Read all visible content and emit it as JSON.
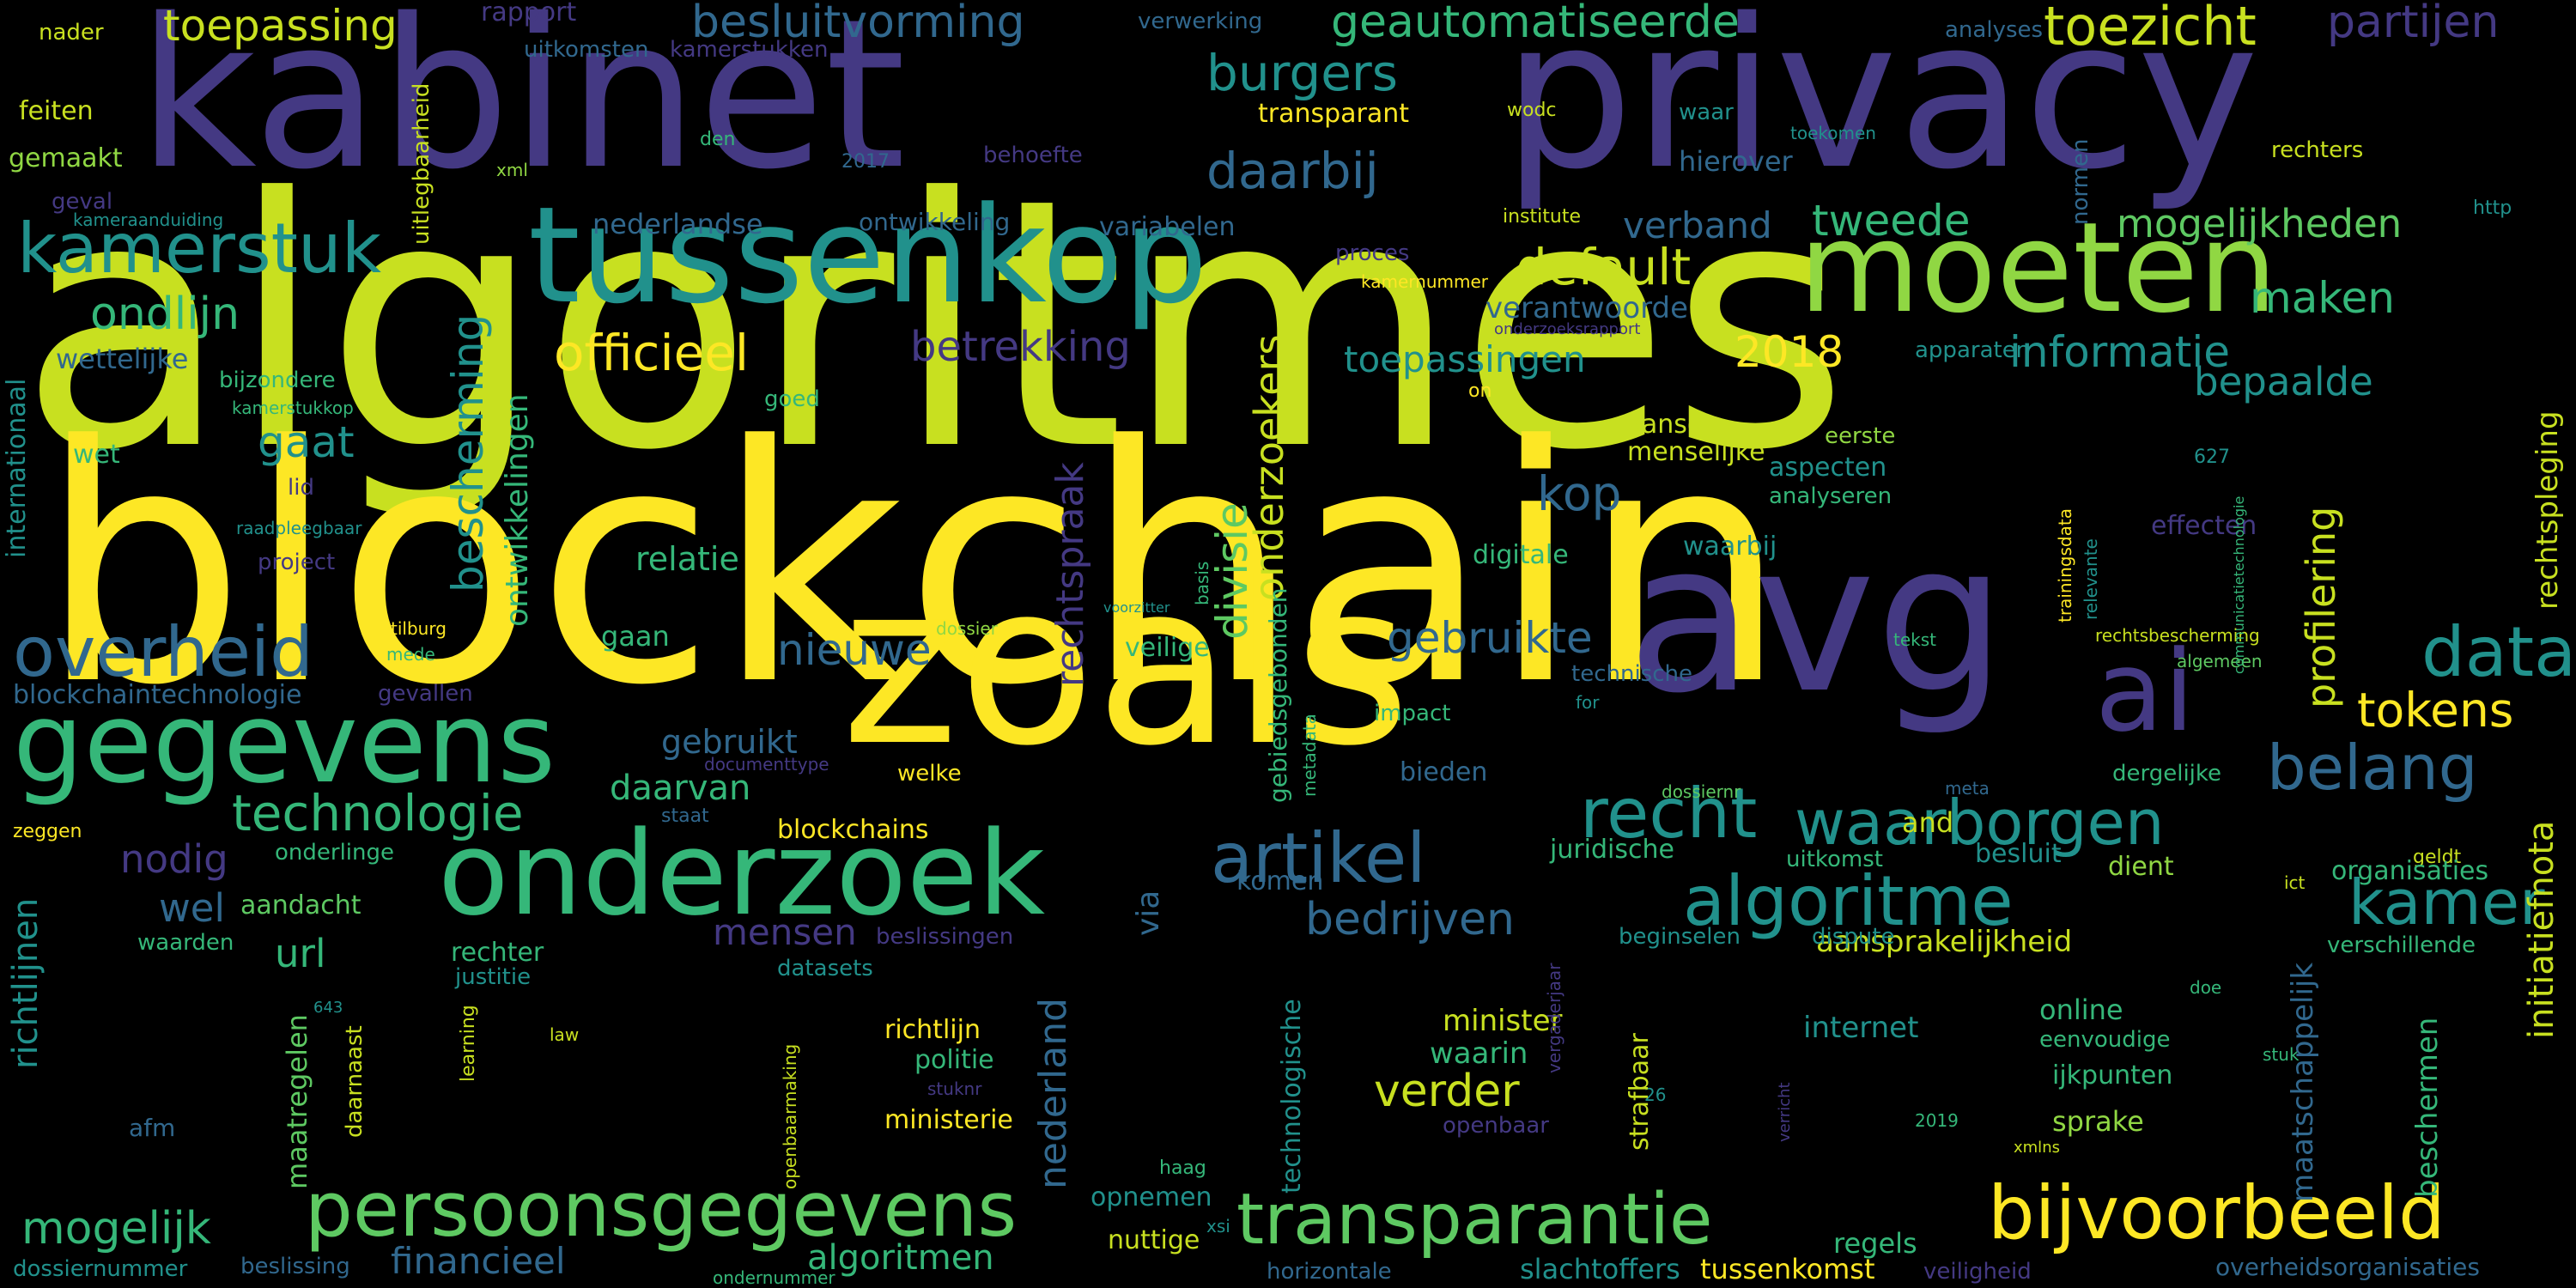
{
  "palette": {
    "background": "#000000",
    "yellow": "#fde725",
    "lime": "#c8e020",
    "green": "#90d743",
    "ltgreen": "#5ec962",
    "teal": "#21918c",
    "tealgreen": "#35b779",
    "blue": "#31688e",
    "indigo": "#443983",
    "purple": "#440154"
  },
  "words": [
    {
      "id": "algoritmes",
      "text": "algoritmes"
    },
    {
      "id": "blockchain",
      "text": "blockchain"
    },
    {
      "id": "kabinet",
      "text": "kabinet"
    },
    {
      "id": "privacy",
      "text": "privacy"
    },
    {
      "id": "zoals",
      "text": "zoals"
    },
    {
      "id": "avg",
      "text": "avg"
    },
    {
      "id": "tussenkop",
      "text": "tussenkop"
    },
    {
      "id": "moeten",
      "text": "moeten"
    },
    {
      "id": "onderzoek",
      "text": "onderzoek"
    },
    {
      "id": "gegevens",
      "text": "gegevens"
    },
    {
      "id": "ai",
      "text": "ai"
    },
    {
      "id": "persoonsgegevens",
      "text": "persoonsgegevens"
    },
    {
      "id": "transparantie",
      "text": "transparantie"
    },
    {
      "id": "bijvoorbeeld",
      "text": "bijvoorbeeld"
    },
    {
      "id": "kamerstuk",
      "text": "kamerstuk"
    },
    {
      "id": "overheid",
      "text": "overheid"
    },
    {
      "id": "algoritme",
      "text": "algoritme"
    },
    {
      "id": "artikel",
      "text": "artikel"
    },
    {
      "id": "recht",
      "text": "recht"
    },
    {
      "id": "data",
      "text": "data"
    },
    {
      "id": "belang",
      "text": "belang"
    },
    {
      "id": "waarborgen",
      "text": "waarborgen"
    },
    {
      "id": "kamer",
      "text": "kamer"
    },
    {
      "id": "technologie",
      "text": "technologie"
    },
    {
      "id": "besluitvorming",
      "text": "besluitvorming"
    },
    {
      "id": "geautomatiseerde",
      "text": "geautomatiseerde"
    },
    {
      "id": "toezicht",
      "text": "toezicht"
    },
    {
      "id": "partijen",
      "text": "partijen"
    },
    {
      "id": "toepassing",
      "text": "toepassing"
    },
    {
      "id": "burgers",
      "text": "burgers"
    },
    {
      "id": "daarbij",
      "text": "daarbij"
    },
    {
      "id": "default",
      "text": "default"
    },
    {
      "id": "officieel",
      "text": "officieel"
    },
    {
      "id": "ondlijn",
      "text": "ondlijn"
    },
    {
      "id": "tweede",
      "text": "tweede"
    },
    {
      "id": "mogelijkheden",
      "text": "mogelijkheden"
    },
    {
      "id": "maken",
      "text": "maken"
    },
    {
      "id": "bepaalde",
      "text": "bepaalde"
    },
    {
      "id": "informatie",
      "text": "informatie"
    },
    {
      "id": "2018",
      "text": "2018"
    },
    {
      "id": "betrekking",
      "text": "betrekking"
    },
    {
      "id": "toepassingen",
      "text": "toepassingen"
    },
    {
      "id": "gaat",
      "text": "gaat"
    },
    {
      "id": "kop",
      "text": "kop"
    },
    {
      "id": "tokens",
      "text": "tokens"
    },
    {
      "id": "gebruikte",
      "text": "gebruikte"
    },
    {
      "id": "nieuwe",
      "text": "nieuwe"
    },
    {
      "id": "nodig",
      "text": "nodig"
    },
    {
      "id": "wel",
      "text": "wel"
    },
    {
      "id": "mensen",
      "text": "mensen"
    },
    {
      "id": "url",
      "text": "url"
    },
    {
      "id": "bedrijven",
      "text": "bedrijven"
    },
    {
      "id": "verder",
      "text": "verder"
    },
    {
      "id": "mogelijk",
      "text": "mogelijk"
    },
    {
      "id": "financieel",
      "text": "financieel"
    },
    {
      "id": "algoritmen",
      "text": "algoritmen"
    },
    {
      "id": "daarvan",
      "text": "daarvan"
    },
    {
      "id": "gebruikt",
      "text": "gebruikt"
    },
    {
      "id": "aansprakelijkheid",
      "text": "aansprakelijkheid"
    },
    {
      "id": "internet",
      "text": "internet"
    },
    {
      "id": "sprake",
      "text": "sprake"
    },
    {
      "id": "regels",
      "text": "regels"
    },
    {
      "id": "overheidsorganisaties",
      "text": "overheidsorganisaties"
    },
    {
      "id": "feiten",
      "text": "feiten"
    },
    {
      "id": "gemaakt",
      "text": "gemaakt"
    },
    {
      "id": "nader",
      "text": "nader"
    },
    {
      "id": "rapport",
      "text": "rapport"
    },
    {
      "id": "uitkomsten",
      "text": "uitkomsten"
    },
    {
      "id": "kamerstukken",
      "text": "kamerstukken"
    },
    {
      "id": "verwerking",
      "text": "verwerking"
    },
    {
      "id": "analyses",
      "text": "analyses"
    },
    {
      "id": "transparant",
      "text": "transparant"
    },
    {
      "id": "wodc",
      "text": "wodc"
    },
    {
      "id": "waar",
      "text": "waar"
    },
    {
      "id": "toekomen",
      "text": "toekomen"
    },
    {
      "id": "rechters",
      "text": "rechters"
    },
    {
      "id": "den",
      "text": "den"
    },
    {
      "id": "2017",
      "text": "2017"
    },
    {
      "id": "behoefte",
      "text": "behoefte"
    },
    {
      "id": "hierover",
      "text": "hierover"
    },
    {
      "id": "xml",
      "text": "xml"
    },
    {
      "id": "geval",
      "text": "geval"
    },
    {
      "id": "kameraanduiding",
      "text": "kameraanduiding"
    },
    {
      "id": "nederlandse",
      "text": "nederlandse"
    },
    {
      "id": "ontwikkeling",
      "text": "ontwikkeling"
    },
    {
      "id": "variabelen",
      "text": "variabelen"
    },
    {
      "id": "verband",
      "text": "verband"
    },
    {
      "id": "institute",
      "text": "institute"
    },
    {
      "id": "http",
      "text": "http"
    },
    {
      "id": "proces",
      "text": "proces"
    },
    {
      "id": "kamernummer",
      "text": "kamernummer"
    },
    {
      "id": "verantwoorde",
      "text": "verantwoorde"
    },
    {
      "id": "onderzoeksrapport",
      "text": "onderzoeksrapport"
    },
    {
      "id": "wettelijke",
      "text": "wettelijke"
    },
    {
      "id": "bijzondere",
      "text": "bijzondere"
    },
    {
      "id": "kamerstukkop",
      "text": "kamerstukkop"
    },
    {
      "id": "apparaten",
      "text": "apparaten"
    },
    {
      "id": "goed",
      "text": "goed"
    },
    {
      "id": "on",
      "text": "on"
    },
    {
      "id": "kansen",
      "text": "kansen"
    },
    {
      "id": "menselijke",
      "text": "menselijke"
    },
    {
      "id": "eerste",
      "text": "eerste"
    },
    {
      "id": "aspecten",
      "text": "aspecten"
    },
    {
      "id": "analyseren",
      "text": "analyseren"
    },
    {
      "id": "627",
      "text": "627"
    },
    {
      "id": "wet",
      "text": "wet"
    },
    {
      "id": "lid",
      "text": "lid"
    },
    {
      "id": "raadpleegbaar",
      "text": "raadpleegbaar"
    },
    {
      "id": "project",
      "text": "project"
    },
    {
      "id": "relatie",
      "text": "relatie"
    },
    {
      "id": "digitale",
      "text": "digitale"
    },
    {
      "id": "waarbij",
      "text": "waarbij"
    },
    {
      "id": "effecten",
      "text": "effecten"
    },
    {
      "id": "tilburg",
      "text": "tilburg"
    },
    {
      "id": "mede",
      "text": "mede"
    },
    {
      "id": "gaan",
      "text": "gaan"
    },
    {
      "id": "veilige",
      "text": "veilige"
    },
    {
      "id": "voorzitter",
      "text": "voorzitter"
    },
    {
      "id": "dossier",
      "text": "dossier"
    },
    {
      "id": "tekst",
      "text": "tekst"
    },
    {
      "id": "rechtsbescherming",
      "text": "rechtsbescherming"
    },
    {
      "id": "algemeen",
      "text": "algemeen"
    },
    {
      "id": "blockchaintechnologie",
      "text": "blockchaintechnologie"
    },
    {
      "id": "gevallen",
      "text": "gevallen"
    },
    {
      "id": "technische",
      "text": "technische"
    },
    {
      "id": "impact",
      "text": "impact"
    },
    {
      "id": "for",
      "text": "for"
    },
    {
      "id": "documenttype",
      "text": "documenttype"
    },
    {
      "id": "welke",
      "text": "welke"
    },
    {
      "id": "bieden",
      "text": "bieden"
    },
    {
      "id": "dergelijke",
      "text": "dergelijke"
    },
    {
      "id": "meta",
      "text": "meta"
    },
    {
      "id": "dossiernr",
      "text": "dossiernr"
    },
    {
      "id": "zeggen",
      "text": "zeggen"
    },
    {
      "id": "staat",
      "text": "staat"
    },
    {
      "id": "blockchains",
      "text": "blockchains"
    },
    {
      "id": "and",
      "text": "and"
    },
    {
      "id": "besluit",
      "text": "besluit"
    },
    {
      "id": "uitkomst",
      "text": "uitkomst"
    },
    {
      "id": "juridische",
      "text": "juridische"
    },
    {
      "id": "komen",
      "text": "komen"
    },
    {
      "id": "dient",
      "text": "dient"
    },
    {
      "id": "geldt",
      "text": "geldt"
    },
    {
      "id": "onderlinge",
      "text": "onderlinge"
    },
    {
      "id": "aandacht",
      "text": "aandacht"
    },
    {
      "id": "organisaties",
      "text": "organisaties"
    },
    {
      "id": "ict",
      "text": "ict"
    },
    {
      "id": "waarden",
      "text": "waarden"
    },
    {
      "id": "beslissingen",
      "text": "beslissingen"
    },
    {
      "id": "beginselen",
      "text": "beginselen"
    },
    {
      "id": "dispute",
      "text": "dispute"
    },
    {
      "id": "verschillende",
      "text": "verschillende"
    },
    {
      "id": "rechter",
      "text": "rechter"
    },
    {
      "id": "justitie",
      "text": "justitie"
    },
    {
      "id": "datasets",
      "text": "datasets"
    },
    {
      "id": "643",
      "text": "643"
    },
    {
      "id": "law",
      "text": "law"
    },
    {
      "id": "minister",
      "text": "minister"
    },
    {
      "id": "waarin",
      "text": "waarin"
    },
    {
      "id": "online",
      "text": "online"
    },
    {
      "id": "eenvoudige",
      "text": "eenvoudige"
    },
    {
      "id": "doe",
      "text": "doe"
    },
    {
      "id": "stuk",
      "text": "stuk"
    },
    {
      "id": "richtlijn",
      "text": "richtlijn"
    },
    {
      "id": "politie",
      "text": "politie"
    },
    {
      "id": "stuknr",
      "text": "stuknr"
    },
    {
      "id": "ijkpunten",
      "text": "ijkpunten"
    },
    {
      "id": "afm",
      "text": "afm"
    },
    {
      "id": "ministerie",
      "text": "ministerie"
    },
    {
      "id": "openbaar",
      "text": "openbaar"
    },
    {
      "id": "26",
      "text": "26"
    },
    {
      "id": "2019",
      "text": "2019"
    },
    {
      "id": "xmlns",
      "text": "xmlns"
    },
    {
      "id": "haag",
      "text": "haag"
    },
    {
      "id": "opnemen",
      "text": "opnemen"
    },
    {
      "id": "nuttige",
      "text": "nuttige"
    },
    {
      "id": "xsi",
      "text": "xsi"
    },
    {
      "id": "beslissing",
      "text": "beslissing"
    },
    {
      "id": "horizontale",
      "text": "horizontale"
    },
    {
      "id": "slachtoffers",
      "text": "slachtoffers"
    },
    {
      "id": "tussenkomst",
      "text": "tussenkomst"
    },
    {
      "id": "veiligheid",
      "text": "veiligheid"
    },
    {
      "id": "dossiernummer",
      "text": "dossiernummer"
    },
    {
      "id": "ondernummer",
      "text": "ondernummer"
    },
    {
      "id": "uitlegbaarheid",
      "text": "uitlegbaarheid"
    },
    {
      "id": "internationaal",
      "text": "internationaal"
    },
    {
      "id": "bescherming",
      "text": "bescherming"
    },
    {
      "id": "ontwikkelingen",
      "text": "ontwikkelingen"
    },
    {
      "id": "rechtspraak",
      "text": "rechtspraak"
    },
    {
      "id": "divisie",
      "text": "divisie"
    },
    {
      "id": "onderzoekers",
      "text": "onderzoekers"
    },
    {
      "id": "gebiedsgebonden",
      "text": "gebiedsgebonden"
    },
    {
      "id": "metadata",
      "text": "metadata"
    },
    {
      "id": "basis",
      "text": "basis"
    },
    {
      "id": "relevante",
      "text": "relevante"
    },
    {
      "id": "normen",
      "text": "normen"
    },
    {
      "id": "trainingsdata",
      "text": "trainingsdata"
    },
    {
      "id": "profilering",
      "text": "profilering"
    },
    {
      "id": "communicatietechnologie",
      "text": "communicatietechnologie"
    },
    {
      "id": "initiatiefnota",
      "text": "initiatiefnota"
    },
    {
      "id": "rechtspleging",
      "text": "rechtspleging"
    },
    {
      "id": "richtlijnen",
      "text": "richtlijnen"
    },
    {
      "id": "maatregelen",
      "text": "maatregelen"
    },
    {
      "id": "daarnaast",
      "text": "daarnaast"
    },
    {
      "id": "learning",
      "text": "learning"
    },
    {
      "id": "openbaarmaking",
      "text": "openbaarmaking"
    },
    {
      "id": "nederland",
      "text": "nederland"
    },
    {
      "id": "via",
      "text": "via"
    },
    {
      "id": "technologische",
      "text": "technologische"
    },
    {
      "id": "vergaderjaar",
      "text": "vergaderjaar"
    },
    {
      "id": "strafbaar",
      "text": "strafbaar"
    },
    {
      "id": "verricht",
      "text": "verricht"
    },
    {
      "id": "maatschappelijk",
      "text": "maatschappelijk"
    },
    {
      "id": "beschermen",
      "text": "beschermen"
    }
  ]
}
